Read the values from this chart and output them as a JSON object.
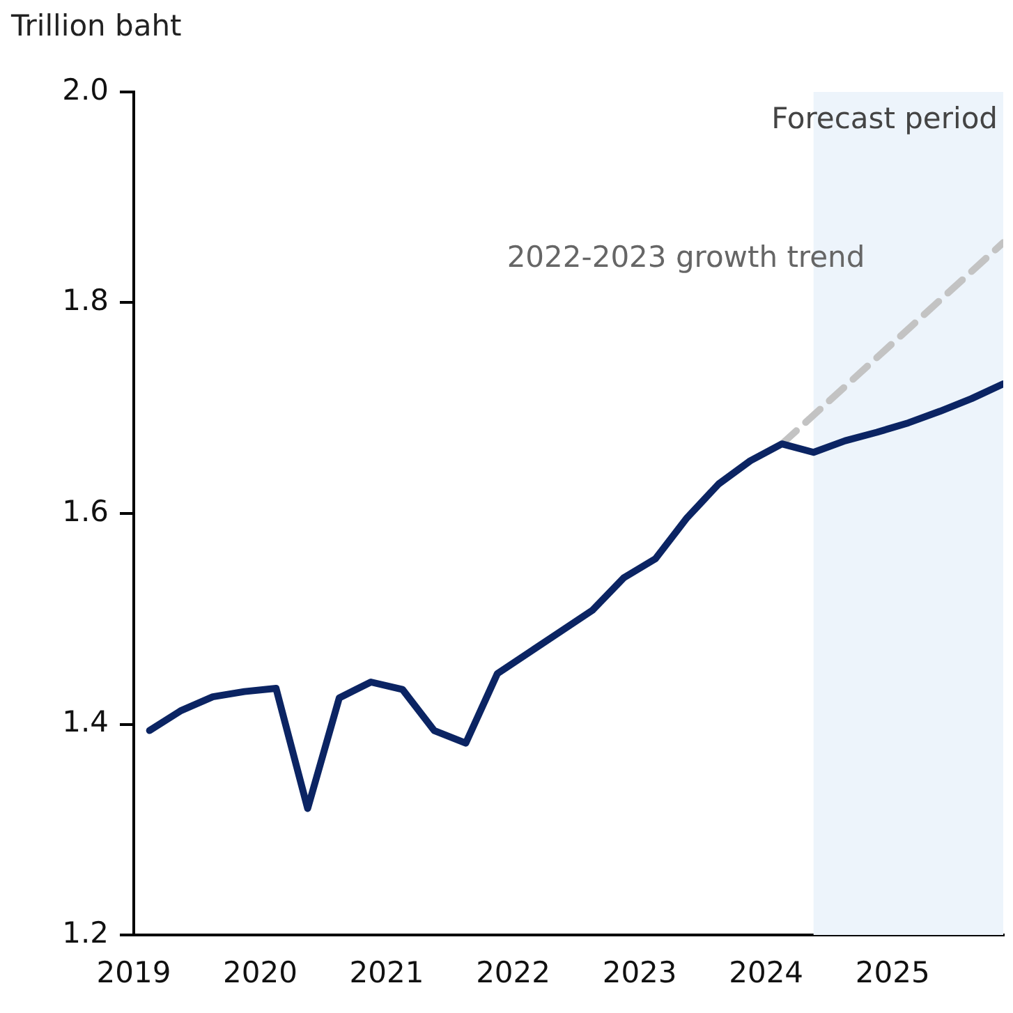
{
  "chart_data": {
    "type": "line",
    "ylabel": "Trillion baht",
    "x": [
      2019.125,
      2019.375,
      2019.625,
      2019.875,
      2020.125,
      2020.375,
      2020.625,
      2020.875,
      2021.125,
      2021.375,
      2021.625,
      2021.875,
      2022.125,
      2022.375,
      2022.625,
      2022.875,
      2023.125,
      2023.375,
      2023.625,
      2023.875,
      2024.125,
      2024.375,
      2024.625,
      2024.875,
      2025.125,
      2025.375,
      2025.625,
      2025.875
    ],
    "series": [
      {
        "color": "#0b2463",
        "line_style": "solid",
        "values": [
          1.394,
          1.413,
          1.426,
          1.431,
          1.434,
          1.32,
          1.425,
          1.44,
          1.433,
          1.394,
          1.382,
          1.448,
          1.468,
          1.488,
          1.508,
          1.539,
          1.557,
          1.596,
          1.628,
          1.65,
          1.666,
          1.658,
          1.669,
          1.677,
          1.686,
          1.697,
          1.709,
          1.723
        ]
      },
      {
        "color": "#c3c3c3",
        "line_style": "dashed",
        "x": [
          2024.125,
          2025.875
        ],
        "values": [
          1.666,
          1.857
        ]
      }
    ],
    "xlim": [
      2019,
      2025.875
    ],
    "xticks": [
      2019,
      2020,
      2021,
      2022,
      2023,
      2024,
      2025
    ],
    "ylim": [
      1.2,
      2.0
    ],
    "yticks": [
      1.2,
      1.4,
      1.6,
      1.8,
      {
        "value": 2.0,
        "label": "2.0"
      }
    ],
    "bands": [
      {
        "axis": "x",
        "from": 2024.375,
        "to": 2025.875,
        "label": "Forecast period",
        "color": "#edf4fb"
      }
    ],
    "annotations": [
      "2022-2023 growth trend"
    ],
    "grid": false,
    "legend": false,
    "marker": "none"
  }
}
